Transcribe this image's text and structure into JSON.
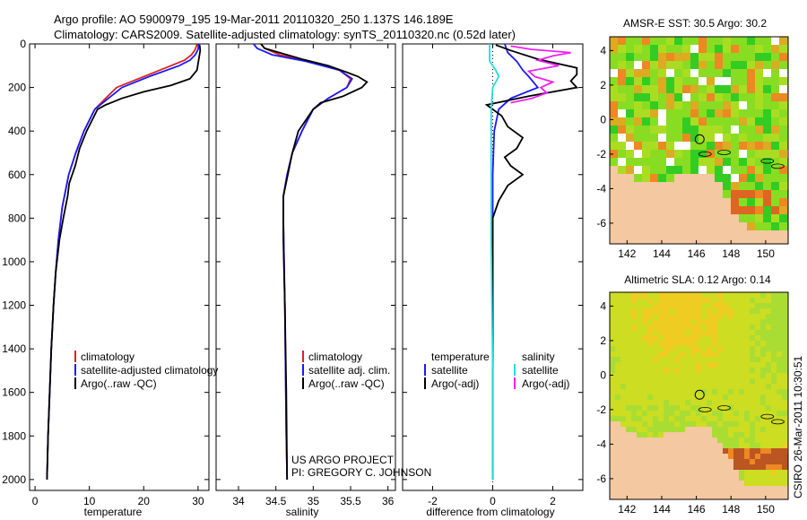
{
  "header": {
    "line1": "Argo profile: AO 5900979_195 19-Mar-2011 20110320_250 1.137S 146.189E",
    "line2": "Climatology: CARS2009. Satellite-adjusted climatology: synTS_20110320.nc (0.52d later)"
  },
  "credits": {
    "project": "US ARGO PROJECT",
    "pi": "PI: GREGORY C. JOHNSON",
    "side_stamp": "CSIRO 26-Mar-2011 10:30:51"
  },
  "colors": {
    "climatology": "#dd2222",
    "satellite": "#1a1aff",
    "argo": "#000000",
    "satellite_light": "#22dddd",
    "argo_adj_light": "#ee22ee",
    "land": "#f4c8a0"
  },
  "chart_data": [
    {
      "type": "line",
      "name": "temperature",
      "xlabel": "temperature",
      "ylabel": "",
      "xlim": [
        -1,
        32
      ],
      "ylim": [
        2050,
        0
      ],
      "xticks": [
        "0",
        "10",
        "20",
        "30"
      ],
      "xtick_values": [
        0,
        10,
        20,
        30
      ],
      "yticks": [
        "0",
        "200",
        "400",
        "600",
        "800",
        "1000",
        "1200",
        "1400",
        "1600",
        "1800",
        "2000"
      ],
      "ytick_values": [
        0,
        200,
        400,
        600,
        800,
        1000,
        1200,
        1400,
        1600,
        1800,
        2000
      ],
      "legend": [
        "climatology",
        "satellite-adjusted climatology",
        "Argo(..raw -QC)"
      ],
      "series": [
        {
          "name": "climatology",
          "color": "#dd2222",
          "x": [
            29.8,
            29.5,
            28.8,
            27.5,
            25,
            20,
            15,
            13,
            11,
            9,
            7.5,
            6.2,
            5,
            4.3,
            3.8,
            3.4,
            3.0,
            2.7,
            2.4,
            2.2
          ],
          "y": [
            0,
            25,
            50,
            75,
            100,
            150,
            200,
            250,
            300,
            400,
            500,
            600,
            750,
            900,
            1050,
            1200,
            1400,
            1600,
            1800,
            2000
          ]
        },
        {
          "name": "satellite-adjusted climatology",
          "color": "#1a1aff",
          "x": [
            30.2,
            30.0,
            29.5,
            28.5,
            26.5,
            21,
            16,
            13.5,
            11,
            9,
            7.5,
            6.2,
            5,
            4.3,
            3.8,
            3.4,
            3.0,
            2.7,
            2.4,
            2.2
          ],
          "y": [
            0,
            25,
            50,
            75,
            100,
            150,
            200,
            250,
            300,
            400,
            500,
            600,
            750,
            900,
            1050,
            1200,
            1400,
            1600,
            1800,
            2000
          ]
        },
        {
          "name": "Argo(..raw -QC)",
          "color": "#000000",
          "x": [
            30.3,
            30.4,
            30.2,
            30.0,
            29.8,
            28.5,
            25,
            20,
            16,
            13,
            11.5,
            9.5,
            8.2,
            7.4,
            6.3,
            6.0,
            5.2,
            4.5,
            3.8,
            3.4,
            3.0,
            2.7,
            2.4,
            2.2
          ],
          "y": [
            5,
            30,
            60,
            90,
            120,
            160,
            190,
            220,
            250,
            280,
            300,
            400,
            480,
            560,
            640,
            700,
            800,
            900,
            1050,
            1200,
            1400,
            1600,
            1800,
            2000
          ]
        }
      ]
    },
    {
      "type": "line",
      "name": "salinity",
      "xlabel": "salinity",
      "ylabel": "",
      "xlim": [
        33.7,
        36.1
      ],
      "ylim": [
        2050,
        0
      ],
      "xticks": [
        "34",
        "34.5",
        "35",
        "35.5",
        "36"
      ],
      "xtick_values": [
        34,
        34.5,
        35,
        35.5,
        36
      ],
      "legend": [
        "climatology",
        "satellite adj. clim.",
        "Argo(..raw -QC)"
      ],
      "series": [
        {
          "name": "climatology",
          "color": "#dd2222",
          "x": [
            34.3,
            34.35,
            34.55,
            34.95,
            35.35,
            35.5,
            35.45,
            35.2,
            35.0,
            34.85,
            34.72,
            34.65,
            34.6,
            34.6,
            34.61,
            34.62,
            34.63,
            34.64,
            34.65
          ],
          "y": [
            0,
            20,
            50,
            80,
            120,
            160,
            200,
            250,
            300,
            400,
            500,
            600,
            700,
            800,
            1000,
            1200,
            1500,
            1800,
            2000
          ]
        },
        {
          "name": "satellite adj. clim.",
          "color": "#1a1aff",
          "x": [
            34.2,
            34.25,
            34.45,
            34.9,
            35.35,
            35.52,
            35.45,
            35.2,
            35.0,
            34.85,
            34.72,
            34.65,
            34.6,
            34.6,
            34.61,
            34.62,
            34.63,
            34.64,
            34.65
          ],
          "y": [
            0,
            20,
            50,
            80,
            120,
            160,
            200,
            250,
            300,
            400,
            500,
            600,
            700,
            800,
            1000,
            1200,
            1500,
            1800,
            2000
          ]
        },
        {
          "name": "Argo(..raw -QC)",
          "color": "#000000",
          "x": [
            34.3,
            34.35,
            34.55,
            34.85,
            35.2,
            35.45,
            35.6,
            35.72,
            35.65,
            35.4,
            35.1,
            35.0,
            34.8,
            34.72,
            34.66,
            34.6,
            34.6,
            34.62,
            34.64,
            34.65
          ],
          "y": [
            0,
            20,
            40,
            70,
            100,
            130,
            150,
            175,
            200,
            240,
            270,
            300,
            400,
            500,
            600,
            700,
            900,
            1200,
            1600,
            2000
          ]
        }
      ]
    },
    {
      "type": "line",
      "name": "difference",
      "xlabel": "difference from climatology",
      "ylabel": "",
      "xlim": [
        -3,
        3
      ],
      "ylim": [
        2050,
        0
      ],
      "xticks": [
        "-2",
        "0",
        "2"
      ],
      "xtick_values": [
        -2,
        0,
        2
      ],
      "legend_left_title": "temperature",
      "legend_right_title": "salinity",
      "legend_left": [
        "satellite",
        "Argo(-adj)"
      ],
      "legend_right": [
        "satellite",
        "Argo(-adj)"
      ],
      "series": [
        {
          "name": "temperature satellite",
          "color": "#1a1aff",
          "x": [
            0.4,
            0.5,
            0.8,
            1.0,
            1.2,
            1.5,
            0.6,
            0.2,
            0.05,
            0,
            0,
            0,
            0,
            0
          ],
          "y": [
            0,
            40,
            80,
            120,
            150,
            200,
            250,
            300,
            400,
            600,
            1000,
            1400,
            1800,
            2000
          ]
        },
        {
          "name": "temperature Argo(-adj)",
          "color": "#000000",
          "x": [
            0.1,
            0.6,
            1.5,
            2.8,
            2.8,
            2.6,
            2.8,
            1.2,
            -0.2,
            0.3,
            0.5,
            1.0,
            0.8,
            0.4,
            0.6,
            1.0,
            0.5,
            0.2,
            0,
            0
          ],
          "y": [
            5,
            30,
            70,
            110,
            140,
            170,
            200,
            240,
            280,
            330,
            380,
            430,
            480,
            520,
            560,
            600,
            650,
            720,
            800,
            2000
          ]
        },
        {
          "name": "salinity satellite",
          "color": "#22dddd",
          "x": [
            -0.1,
            -0.1,
            -0.1,
            -0.1,
            0.1,
            0.2,
            0,
            -0.05,
            -0.05,
            -0.05,
            0,
            0
          ],
          "y": [
            0,
            20,
            40,
            80,
            120,
            150,
            200,
            300,
            500,
            900,
            1500,
            2000
          ]
        },
        {
          "name": "salinity Argo(-adj)",
          "color": "#ee22ee",
          "x": [
            0.6,
            1.3,
            2.6,
            2.0,
            1.5,
            2.2,
            1.2,
            1.4,
            2.0,
            1.6,
            1.8,
            1.3,
            0.6
          ],
          "y": [
            10,
            25,
            40,
            55,
            75,
            100,
            125,
            150,
            175,
            200,
            225,
            250,
            270
          ]
        }
      ]
    },
    {
      "type": "heatmap",
      "name": "sst_map",
      "title": "AMSR-E SST: 30.5  Argo: 30.2",
      "xticks": [
        "142",
        "144",
        "146",
        "148",
        "150"
      ],
      "xtick_values": [
        142,
        144,
        146,
        148,
        150
      ],
      "yticks": [
        "4",
        "2",
        "0",
        "-2",
        "-4",
        "-6"
      ],
      "ytick_values": [
        4,
        2,
        0,
        -2,
        -4,
        -6
      ],
      "xlim": [
        141,
        151.3
      ],
      "ylim": [
        -7.2,
        4.8
      ],
      "float_location": [
        146.189,
        -1.137
      ]
    },
    {
      "type": "heatmap",
      "name": "sla_map",
      "title": "Altimetric SLA: 0.12  Argo: 0.14",
      "xticks": [
        "142",
        "144",
        "146",
        "148",
        "150"
      ],
      "xtick_values": [
        142,
        144,
        146,
        148,
        150
      ],
      "yticks": [
        "4",
        "2",
        "0",
        "-2",
        "-4",
        "-6"
      ],
      "ytick_values": [
        4,
        2,
        0,
        -2,
        -4,
        -6
      ],
      "xlim": [
        141,
        151.3
      ],
      "ylim": [
        -7.2,
        4.8
      ],
      "float_location": [
        146.189,
        -1.137
      ]
    }
  ]
}
